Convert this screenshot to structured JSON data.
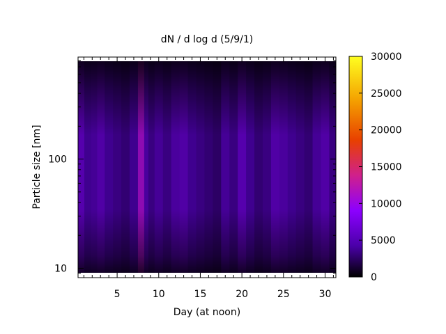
{
  "chart_data": {
    "type": "heatmap",
    "title": "dN / d log d (5/9/1)",
    "xlabel": "Day (at noon)",
    "ylabel": "Particle size [nm]",
    "xlim": [
      0.3,
      31.3
    ],
    "ylim": [
      8.2,
      860
    ],
    "y_scale": "log",
    "x_ticks": [
      5,
      10,
      15,
      20,
      25,
      30
    ],
    "x_tick_labels": [
      "5",
      "10",
      "15",
      "20",
      "25",
      "30"
    ],
    "y_ticks": [
      10,
      100
    ],
    "y_tick_labels": [
      "10",
      "100"
    ],
    "colorbar": {
      "min": 0,
      "max": 30000,
      "ticks": [
        0,
        5000,
        10000,
        15000,
        20000,
        25000,
        30000
      ],
      "tick_labels": [
        "0",
        "5000",
        "10000",
        "15000",
        "20000",
        "25000",
        "30000"
      ],
      "colors": [
        "#000000",
        "#4a00a8",
        "#8c00ff",
        "#d0208c",
        "#e84000",
        "#f4a000",
        "#ffff20"
      ]
    },
    "grid": false,
    "column_peaks": [
      {
        "day": 0.6,
        "value": 7000
      },
      {
        "day": 1.5,
        "value": 5000
      },
      {
        "day": 2.2,
        "value": 5500
      },
      {
        "day": 3.0,
        "value": 6500
      },
      {
        "day": 4.0,
        "value": 5000
      },
      {
        "day": 5.0,
        "value": 4500
      },
      {
        "day": 6.0,
        "value": 4000
      },
      {
        "day": 7.0,
        "value": 5000
      },
      {
        "day": 8.0,
        "value": 12000
      },
      {
        "day": 8.5,
        "value": 6000
      },
      {
        "day": 9.0,
        "value": 4500
      },
      {
        "day": 10.0,
        "value": 5500
      },
      {
        "day": 11.0,
        "value": 4500
      },
      {
        "day": 12.0,
        "value": 6000
      },
      {
        "day": 13.0,
        "value": 6500
      },
      {
        "day": 14.0,
        "value": 5000
      },
      {
        "day": 15.0,
        "value": 4500
      },
      {
        "day": 16.0,
        "value": 4000
      },
      {
        "day": 17.0,
        "value": 3500
      },
      {
        "day": 18.0,
        "value": 5500
      },
      {
        "day": 19.0,
        "value": 4500
      },
      {
        "day": 20.0,
        "value": 7000
      },
      {
        "day": 21.0,
        "value": 5000
      },
      {
        "day": 22.0,
        "value": 4000
      },
      {
        "day": 23.0,
        "value": 4500
      },
      {
        "day": 24.0,
        "value": 6500
      },
      {
        "day": 25.0,
        "value": 6000
      },
      {
        "day": 26.0,
        "value": 5000
      },
      {
        "day": 27.0,
        "value": 4500
      },
      {
        "day": 28.0,
        "value": 4000
      },
      {
        "day": 29.0,
        "value": 5500
      },
      {
        "day": 30.0,
        "value": 6500
      },
      {
        "day": 31.0,
        "value": 4500
      }
    ]
  }
}
